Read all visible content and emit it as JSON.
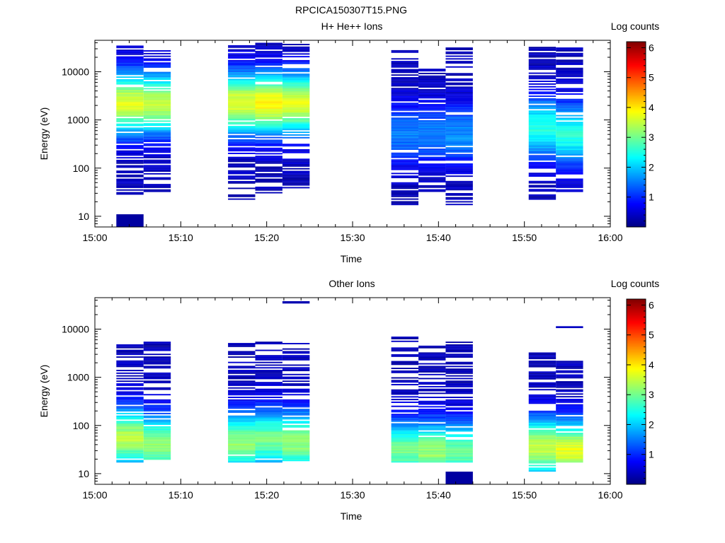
{
  "figure_title": "RPCICA150307T15.PNG",
  "colors": {
    "colormap": [
      "#000080",
      "#0000ff",
      "#0080ff",
      "#00ffff",
      "#80ff80",
      "#ffff00",
      "#ff8000",
      "#ff0000",
      "#800000"
    ],
    "axis": "#000000",
    "background": "#ffffff"
  },
  "chart_data": [
    {
      "type": "heatmap",
      "title": "H+ He++ Ions",
      "xlabel": "Time",
      "ylabel": "Energy (eV)",
      "colorbar_label": "Log counts",
      "x_range": [
        "15:00",
        "16:00"
      ],
      "x_ticks": [
        "15:00",
        "15:10",
        "15:20",
        "15:30",
        "15:40",
        "15:50",
        "16:00"
      ],
      "y_scale": "log",
      "y_range": [
        6,
        45000
      ],
      "y_ticks": [
        "10",
        "100",
        "1000",
        "10000"
      ],
      "colorbar_range": [
        0,
        6.2
      ],
      "colorbar_ticks": [
        "1",
        "2",
        "3",
        "4",
        "5",
        "6"
      ],
      "scans": [
        {
          "t_start": "15:02:30",
          "t_end": "15:05:40",
          "e_min": 28,
          "e_max": 35000,
          "peak": 3.4,
          "peak_at": 2200
        },
        {
          "t_start": "15:05:40",
          "t_end": "15:08:50",
          "e_min": 28,
          "e_max": 28000,
          "peak": 3.2,
          "peak_at": 2200
        },
        {
          "t_start": "15:15:30",
          "t_end": "15:18:40",
          "e_min": 22,
          "e_max": 38000,
          "peak": 3.4,
          "peak_at": 2200
        },
        {
          "t_start": "15:18:40",
          "t_end": "15:21:50",
          "e_min": 28,
          "e_max": 40000,
          "peak": 3.6,
          "peak_at": 2200
        },
        {
          "t_start": "15:21:50",
          "t_end": "15:25:00",
          "e_min": 38,
          "e_max": 38000,
          "peak": 3.4,
          "peak_at": 2200
        },
        {
          "t_start": "15:34:30",
          "t_end": "15:37:40",
          "e_min": 17,
          "e_max": 32000,
          "peak": 1.2,
          "peak_at": 500
        },
        {
          "t_start": "15:37:40",
          "t_end": "15:40:50",
          "e_min": 30,
          "e_max": 16000,
          "peak": 1.2,
          "peak_at": 500
        },
        {
          "t_start": "15:40:50",
          "t_end": "15:44:00",
          "e_min": 17,
          "e_max": 32000,
          "peak": 1.3,
          "peak_at": 500
        },
        {
          "t_start": "15:50:30",
          "t_end": "15:53:40",
          "e_min": 22,
          "e_max": 40000,
          "peak": 2.2,
          "peak_at": 700
        },
        {
          "t_start": "15:53:40",
          "t_end": "15:56:50",
          "e_min": 28,
          "e_max": 32000,
          "peak": 2.2,
          "peak_at": 500
        }
      ],
      "extra_cells": [
        {
          "t_start": "15:02:30",
          "t_end": "15:05:40",
          "e_min": 6,
          "e_max": 11,
          "value": 0.2
        }
      ]
    },
    {
      "type": "heatmap",
      "title": "Other Ions",
      "xlabel": "Time",
      "ylabel": "Energy (eV)",
      "colorbar_label": "Log counts",
      "x_range": [
        "15:00",
        "16:00"
      ],
      "x_ticks": [
        "15:00",
        "15:10",
        "15:20",
        "15:30",
        "15:40",
        "15:50",
        "16:00"
      ],
      "y_scale": "log",
      "y_range": [
        6,
        45000
      ],
      "y_ticks": [
        "10",
        "100",
        "1000",
        "10000"
      ],
      "colorbar_range": [
        0,
        6.2
      ],
      "colorbar_ticks": [
        "1",
        "2",
        "3",
        "4",
        "5",
        "6"
      ],
      "scans": [
        {
          "t_start": "15:02:30",
          "t_end": "15:05:40",
          "e_min": 17,
          "e_max": 5500,
          "peak": 3.1,
          "peak_at": 55
        },
        {
          "t_start": "15:05:40",
          "t_end": "15:08:50",
          "e_min": 17,
          "e_max": 5500,
          "peak": 2.9,
          "peak_at": 40
        },
        {
          "t_start": "15:15:30",
          "t_end": "15:18:40",
          "e_min": 17,
          "e_max": 5500,
          "peak": 2.9,
          "peak_at": 45
        },
        {
          "t_start": "15:18:40",
          "t_end": "15:21:50",
          "e_min": 17,
          "e_max": 5500,
          "peak": 2.7,
          "peak_at": 50
        },
        {
          "t_start": "15:21:50",
          "t_end": "15:25:00",
          "e_min": 17,
          "e_max": 5500,
          "peak": 2.9,
          "peak_at": 45
        },
        {
          "t_start": "15:34:30",
          "t_end": "15:37:40",
          "e_min": 17,
          "e_max": 7000,
          "peak": 2.7,
          "peak_at": 30
        },
        {
          "t_start": "15:37:40",
          "t_end": "15:40:50",
          "e_min": 17,
          "e_max": 5500,
          "peak": 2.9,
          "peak_at": 28
        },
        {
          "t_start": "15:40:50",
          "t_end": "15:44:00",
          "e_min": 17,
          "e_max": 5500,
          "peak": 2.6,
          "peak_at": 28
        },
        {
          "t_start": "15:50:30",
          "t_end": "15:53:40",
          "e_min": 11,
          "e_max": 3500,
          "peak": 3.2,
          "peak_at": 35
        },
        {
          "t_start": "15:53:40",
          "t_end": "15:56:50",
          "e_min": 17,
          "e_max": 2200,
          "peak": 3.4,
          "peak_at": 30
        }
      ],
      "extra_cells": [
        {
          "t_start": "15:40:50",
          "t_end": "15:44:00",
          "e_min": 6,
          "e_max": 11,
          "value": 0.2
        },
        {
          "t_start": "15:21:50",
          "t_end": "15:25:00",
          "e_min": 34000,
          "e_max": 38000,
          "value": 0.3
        },
        {
          "t_start": "15:53:40",
          "t_end": "15:56:50",
          "e_min": 10500,
          "e_max": 11500,
          "value": 0.4
        }
      ]
    }
  ]
}
